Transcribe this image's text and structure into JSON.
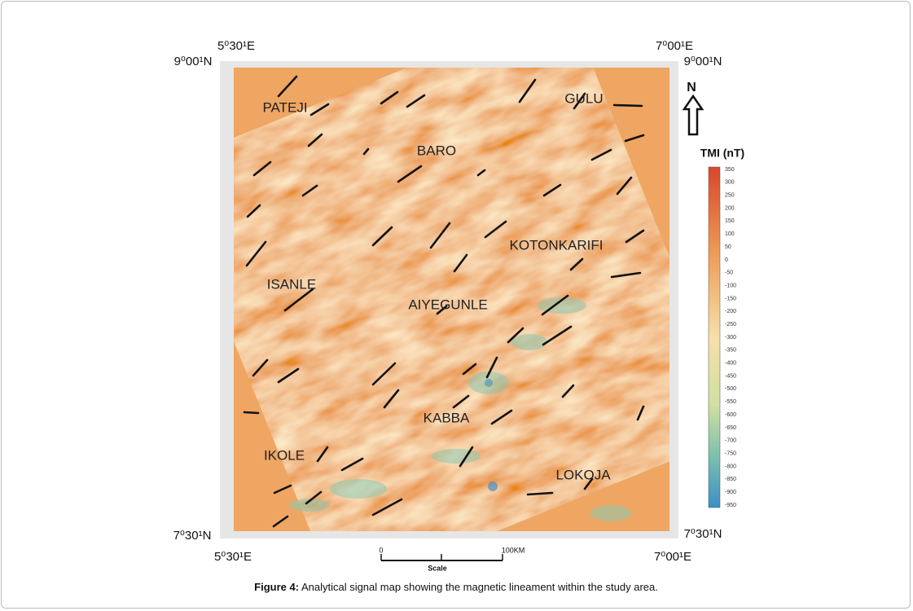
{
  "map": {
    "corners": {
      "top_left": "5⁰30¹E",
      "top_right": "7⁰00¹E",
      "left_top": "9⁰00¹N",
      "right_top": "9⁰00¹N",
      "left_bottom": "7⁰30¹N",
      "right_bottom": "7⁰30¹N",
      "bottom_left": "5⁰30¹E",
      "bottom_right": "7⁰00¹E"
    },
    "places": [
      "PATEJI",
      "GULU",
      "BARO",
      "KOTONKARIFI",
      "ISANLE",
      "AIYEGUNLE",
      "KABBA",
      "IKOLE",
      "LOKOJA"
    ],
    "north": "N",
    "colorbar": {
      "title": "TMI (nT)",
      "ticks": [
        350,
        300,
        250,
        200,
        150,
        100,
        50,
        0,
        -50,
        -100,
        -150,
        -200,
        -250,
        -300,
        -350,
        -400,
        -450,
        -500,
        -550,
        -600,
        -650,
        -700,
        -750,
        -800,
        -850,
        -900,
        -950
      ]
    },
    "scale": {
      "start": "0",
      "end": "100KM",
      "label": "Scale"
    }
  },
  "caption": {
    "label": "Figure 4:",
    "text": " Analytical signal map showing the magnetic lineament within the study area."
  }
}
